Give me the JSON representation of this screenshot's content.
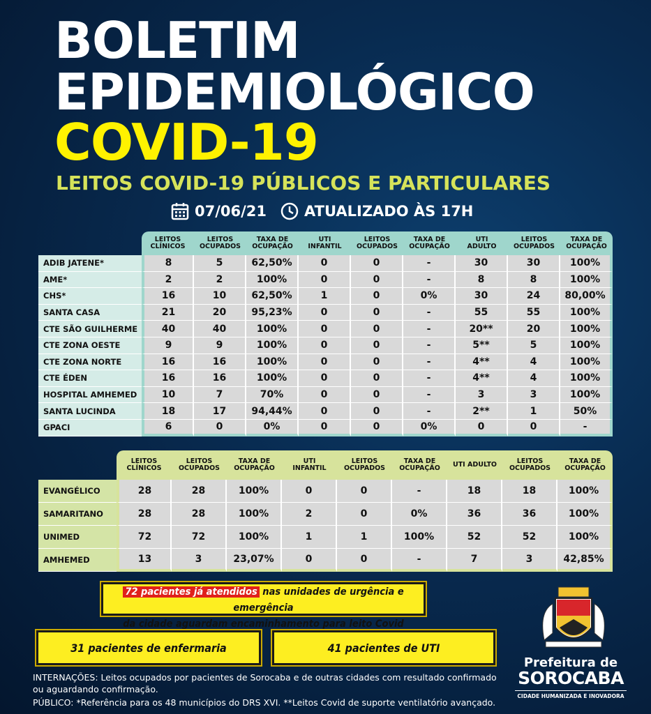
{
  "header": {
    "title_line1": "BOLETIM",
    "title_line2": "EPIDEMIOLÓGICO",
    "title_line3": "COVID-19",
    "subtitle": "LEITOS COVID-19 PÚBLICOS E PARTICULARES",
    "date": "07/06/21",
    "updated": "ATUALIZADO ÀS 17H"
  },
  "public_table": {
    "columns": [
      "LEITOS CLÍNICOS",
      "LEITOS OCUPADOS",
      "TAXA DE OCUPAÇÃO",
      "UTI INFANTIL",
      "LEITOS OCUPADOS",
      "TAXA DE OCUPAÇÃO",
      "UTI ADULTO",
      "LEITOS OCUPADOS",
      "TAXA DE OCUPAÇÃO"
    ],
    "rows": [
      {
        "name": "ADIB JATENE*",
        "cells": [
          "8",
          "5",
          "62,50%",
          "0",
          "0",
          "-",
          "30",
          "30",
          "100%"
        ]
      },
      {
        "name": "AME*",
        "cells": [
          "2",
          "2",
          "100%",
          "0",
          "0",
          "-",
          "8",
          "8",
          "100%"
        ]
      },
      {
        "name": "CHS*",
        "cells": [
          "16",
          "10",
          "62,50%",
          "1",
          "0",
          "0%",
          "30",
          "24",
          "80,00%"
        ]
      },
      {
        "name": "SANTA CASA",
        "cells": [
          "21",
          "20",
          "95,23%",
          "0",
          "0",
          "-",
          "55",
          "55",
          "100%"
        ]
      },
      {
        "name": "CTE SÃO GUILHERME",
        "cells": [
          "40",
          "40",
          "100%",
          "0",
          "0",
          "-",
          "20**",
          "20",
          "100%"
        ]
      },
      {
        "name": "CTE ZONA OESTE",
        "cells": [
          "9",
          "9",
          "100%",
          "0",
          "0",
          "-",
          "5**",
          "5",
          "100%"
        ]
      },
      {
        "name": "CTE ZONA NORTE",
        "cells": [
          "16",
          "16",
          "100%",
          "0",
          "0",
          "-",
          "4**",
          "4",
          "100%"
        ]
      },
      {
        "name": "CTE ÉDEN",
        "cells": [
          "16",
          "16",
          "100%",
          "0",
          "0",
          "-",
          "4**",
          "4",
          "100%"
        ]
      },
      {
        "name": "HOSPITAL AMHEMED",
        "cells": [
          "10",
          "7",
          "70%",
          "0",
          "0",
          "-",
          "3",
          "3",
          "100%"
        ]
      },
      {
        "name": "SANTA LUCINDA",
        "cells": [
          "18",
          "17",
          "94,44%",
          "0",
          "0",
          "-",
          "2**",
          "1",
          "50%"
        ]
      },
      {
        "name": "GPACI",
        "cells": [
          "6",
          "0",
          "0%",
          "0",
          "0",
          "0%",
          "0",
          "0",
          "-"
        ]
      }
    ]
  },
  "private_table": {
    "columns": [
      "LEITOS CLÍNICOS",
      "LEITOS OCUPADOS",
      "TAXA DE OCUPAÇÃO",
      "UTI INFANTIL",
      "LEITOS OCUPADOS",
      "TAXA DE OCUPAÇÃO",
      "UTI ADULTO",
      "LEITOS OCUPADOS",
      "TAXA DE OCUPAÇÃO"
    ],
    "rows": [
      {
        "name": "EVANGÉLICO",
        "cells": [
          "28",
          "28",
          "100%",
          "0",
          "0",
          "-",
          "18",
          "18",
          "100%"
        ]
      },
      {
        "name": "SAMARITANO",
        "cells": [
          "28",
          "28",
          "100%",
          "2",
          "0",
          "0%",
          "36",
          "36",
          "100%"
        ]
      },
      {
        "name": "UNIMED",
        "cells": [
          "72",
          "72",
          "100%",
          "1",
          "1",
          "100%",
          "52",
          "52",
          "100%"
        ]
      },
      {
        "name": "AMHEMED",
        "cells": [
          "13",
          "3",
          "23,07%",
          "0",
          "0",
          "-",
          "7",
          "3",
          "42,85%"
        ]
      }
    ]
  },
  "notice": {
    "highlight": "72 pacientes já atendidos",
    "text_line1": "nas unidades de urgência e emergência",
    "text_line2": "da cidade aguardam encaminhamento para leito Covid",
    "box_left": "31 pacientes de enfermaria",
    "box_right": "41 pacientes de UTI"
  },
  "footer": {
    "note_line1": "INTERNAÇÕES: Leitos ocupados por pacientes de  Sorocaba e de outras cidades com resultado confirmado",
    "note_line2": "ou aguardando confirmação.",
    "note_line3": "PÚBLICO: *Referência para os 48 municípios do DRS XVI. **Leitos Covid de suporte ventilatório avançado.",
    "logo_line1": "Prefeitura de",
    "logo_line2": "SOROCABA",
    "logo_line3": "CIDADE HUMANIZADA E INOVADORA"
  }
}
